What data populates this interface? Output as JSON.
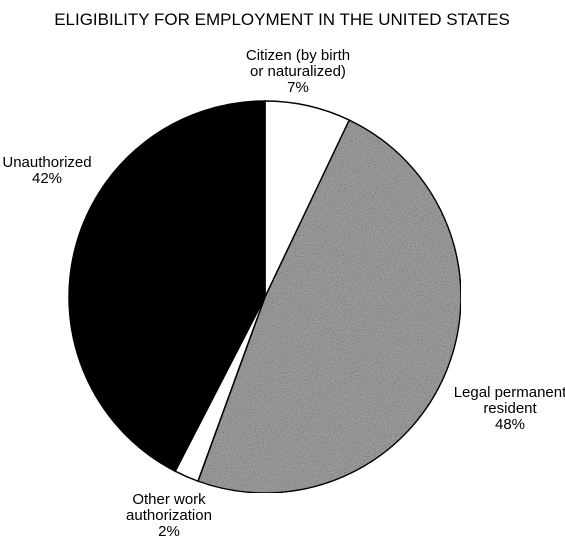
{
  "chart_data": {
    "type": "pie",
    "title": "ELIGIBILITY FOR EMPLOYMENT IN THE UNITED STATES",
    "slices": [
      {
        "label_lines": [
          "Citizen (by birth",
          "or naturalized)"
        ],
        "value": 7,
        "value_label": "7%",
        "color": "#ffffff"
      },
      {
        "label_lines": [
          "Legal permanent",
          "resident"
        ],
        "value": 48,
        "value_label": "48%",
        "color": "#a8a8a8"
      },
      {
        "label_lines": [
          "Other work",
          "authorization"
        ],
        "value": 2,
        "value_label": "2%",
        "color": "#ffffff"
      },
      {
        "label_lines": [
          "Unauthorized"
        ],
        "value": 42,
        "value_label": "42%",
        "color": "#000000"
      }
    ],
    "start_angle_deg": 0,
    "direction": "clockwise",
    "legend": "none"
  }
}
